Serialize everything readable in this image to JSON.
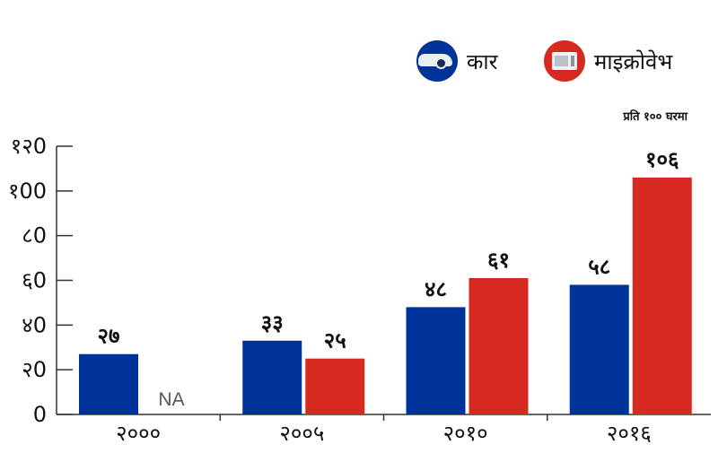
{
  "legend": [
    {
      "label": "कार",
      "color": "#003399",
      "icon": "car-icon"
    },
    {
      "label": "माइक्रोवेभ",
      "color": "#d62a20",
      "icon": "microwave-icon"
    }
  ],
  "unit_note": "प्रति १०० घरमा",
  "chart_data": {
    "type": "bar",
    "categories": [
      "२०००",
      "२००५",
      "२०१०",
      "२०१६"
    ],
    "series": [
      {
        "name": "कार",
        "color": "#003399",
        "values": [
          27,
          33,
          48,
          58
        ],
        "labels": [
          "२७",
          "३३",
          "४८",
          "५८"
        ]
      },
      {
        "name": "माइक्रोवेभ",
        "color": "#d62a20",
        "values": [
          null,
          25,
          61,
          106
        ],
        "labels": [
          "NA",
          "२५",
          "६१",
          "१०६"
        ]
      }
    ],
    "yticks": [
      0,
      20,
      40,
      60,
      80,
      100,
      120
    ],
    "ytick_labels": [
      "0",
      "२0",
      "४0",
      "६0",
      "८0",
      "१00",
      "१२0"
    ],
    "ylim": [
      0,
      120
    ],
    "grid": false
  }
}
